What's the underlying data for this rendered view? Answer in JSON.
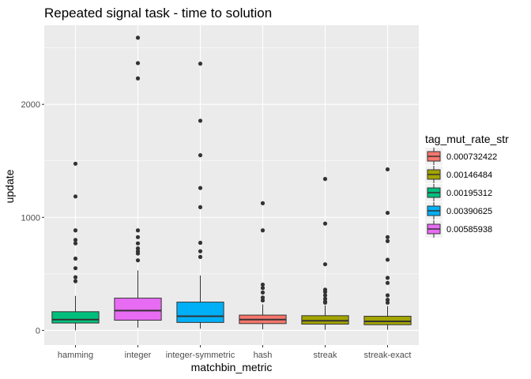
{
  "chart_data": {
    "type": "boxplot",
    "title": "Repeated signal task - time to solution",
    "xlabel": "matchbin_metric",
    "ylabel": "update",
    "ylim": [
      -130,
      2700
    ],
    "yticks": [
      0,
      1000,
      2000
    ],
    "categories": [
      "hamming",
      "integer",
      "integer-symmetric",
      "hash",
      "streak",
      "streak-exact"
    ],
    "grid": true,
    "legend": {
      "title": "tag_mut_rate_str",
      "position": "right",
      "entries": [
        {
          "label": "0.000732422",
          "color": "#F8766D"
        },
        {
          "label": "0.00146484",
          "color": "#A3A500"
        },
        {
          "label": "0.00195312",
          "color": "#00BF7D"
        },
        {
          "label": "0.00390625",
          "color": "#00B0F6"
        },
        {
          "label": "0.00585938",
          "color": "#E76BF3"
        }
      ]
    },
    "boxes": [
      {
        "category": "hamming",
        "series": "0.00195312",
        "color": "#00BF7D",
        "q1": 65,
        "median": 95,
        "q3": 165,
        "whisker_low": 0,
        "whisker_high": 305,
        "outliers": [
          1475,
          1185,
          885,
          800,
          770,
          635,
          550,
          470,
          435
        ]
      },
      {
        "category": "integer",
        "series": "0.00585938",
        "color": "#E76BF3",
        "q1": 90,
        "median": 175,
        "q3": 285,
        "whisker_low": 25,
        "whisker_high": 530,
        "outliers": [
          2590,
          2365,
          2230,
          885,
          825,
          770,
          725,
          700,
          680,
          620
        ]
      },
      {
        "category": "integer-symmetric",
        "series": "0.00390625",
        "color": "#00B0F6",
        "q1": 70,
        "median": 125,
        "q3": 250,
        "whisker_low": 15,
        "whisker_high": 485,
        "outliers": [
          2360,
          1855,
          1550,
          1260,
          1090,
          775,
          700,
          650
        ]
      },
      {
        "category": "hash",
        "series": "0.000732422",
        "color": "#F8766D",
        "q1": 60,
        "median": 95,
        "q3": 135,
        "whisker_low": 10,
        "whisker_high": 230,
        "outliers": [
          1125,
          885,
          405,
          375,
          335,
          290,
          265
        ]
      },
      {
        "category": "streak",
        "series": "0.00146484",
        "color": "#A3A500",
        "q1": 55,
        "median": 85,
        "q3": 130,
        "whisker_low": 5,
        "whisker_high": 220,
        "outliers": [
          1340,
          945,
          585,
          360,
          340,
          310,
          280,
          255,
          245
        ]
      },
      {
        "category": "streak-exact",
        "series": "0.00146484",
        "color": "#A3A500",
        "q1": 50,
        "median": 80,
        "q3": 125,
        "whisker_low": 5,
        "whisker_high": 215,
        "outliers": [
          1425,
          1040,
          825,
          790,
          625,
          465,
          420,
          310,
          270,
          245
        ]
      }
    ]
  }
}
